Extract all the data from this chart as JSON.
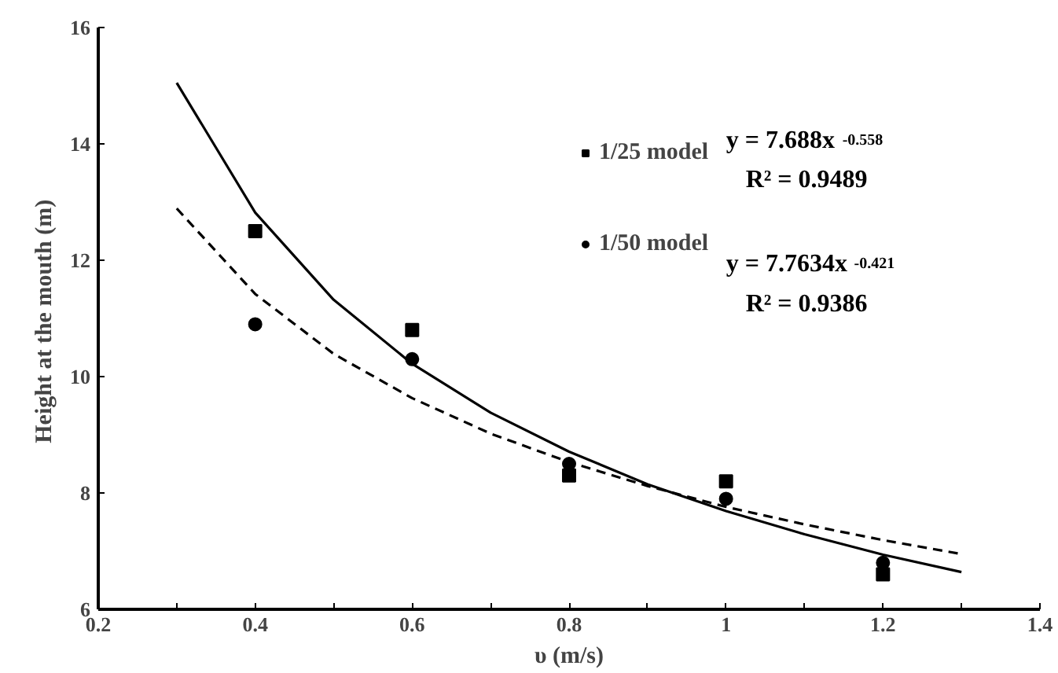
{
  "chart_data": {
    "type": "scatter",
    "xlabel": "υ (m/s)",
    "ylabel": "Height  at the mouth (m)",
    "xlim": [
      0.2,
      1.4
    ],
    "xticks": [
      0.2,
      0.4,
      0.6,
      0.8,
      1,
      1.2,
      1.4
    ],
    "ylim": [
      6,
      16
    ],
    "yticks": [
      6,
      8,
      10,
      12,
      14,
      16
    ],
    "grid": false,
    "legend": "top right",
    "series": [
      {
        "name": "1/25 model",
        "marker": "square",
        "color": "#000000",
        "x": [
          0.4,
          0.6,
          0.8,
          1.0,
          1.2
        ],
        "values": [
          12.5,
          10.8,
          8.3,
          8.2,
          6.6
        ]
      },
      {
        "name": "1/50 model",
        "marker": "circle",
        "color": "#000000",
        "x": [
          0.4,
          0.6,
          0.8,
          1.0,
          1.2
        ],
        "values": [
          10.9,
          10.3,
          8.5,
          7.9,
          6.8
        ]
      },
      {
        "type": "line",
        "line_style": "solid",
        "color": "#000000",
        "x": [
          0.3,
          0.4,
          0.5,
          0.6,
          0.7,
          0.8,
          0.9,
          1.0,
          1.1,
          1.2,
          1.3
        ],
        "values": [
          15.05,
          12.82,
          11.32,
          10.22,
          9.38,
          8.71,
          8.15,
          7.69,
          7.29,
          6.94,
          6.64
        ]
      },
      {
        "type": "line",
        "line_style": "dashed",
        "color": "#000000",
        "x": [
          0.3,
          0.4,
          0.5,
          0.6,
          0.7,
          0.8,
          0.9,
          1.0,
          1.1,
          1.2,
          1.3
        ],
        "values": [
          12.89,
          11.42,
          10.39,
          9.63,
          9.02,
          8.53,
          8.12,
          7.76,
          7.46,
          7.19,
          6.95
        ]
      }
    ],
    "annotations": [
      "y = 7.688x$^{-0.558}$",
      "R² = 0.9489",
      "y = 7.7634x$^{-0.421}$",
      "R² = 0.9386"
    ]
  }
}
